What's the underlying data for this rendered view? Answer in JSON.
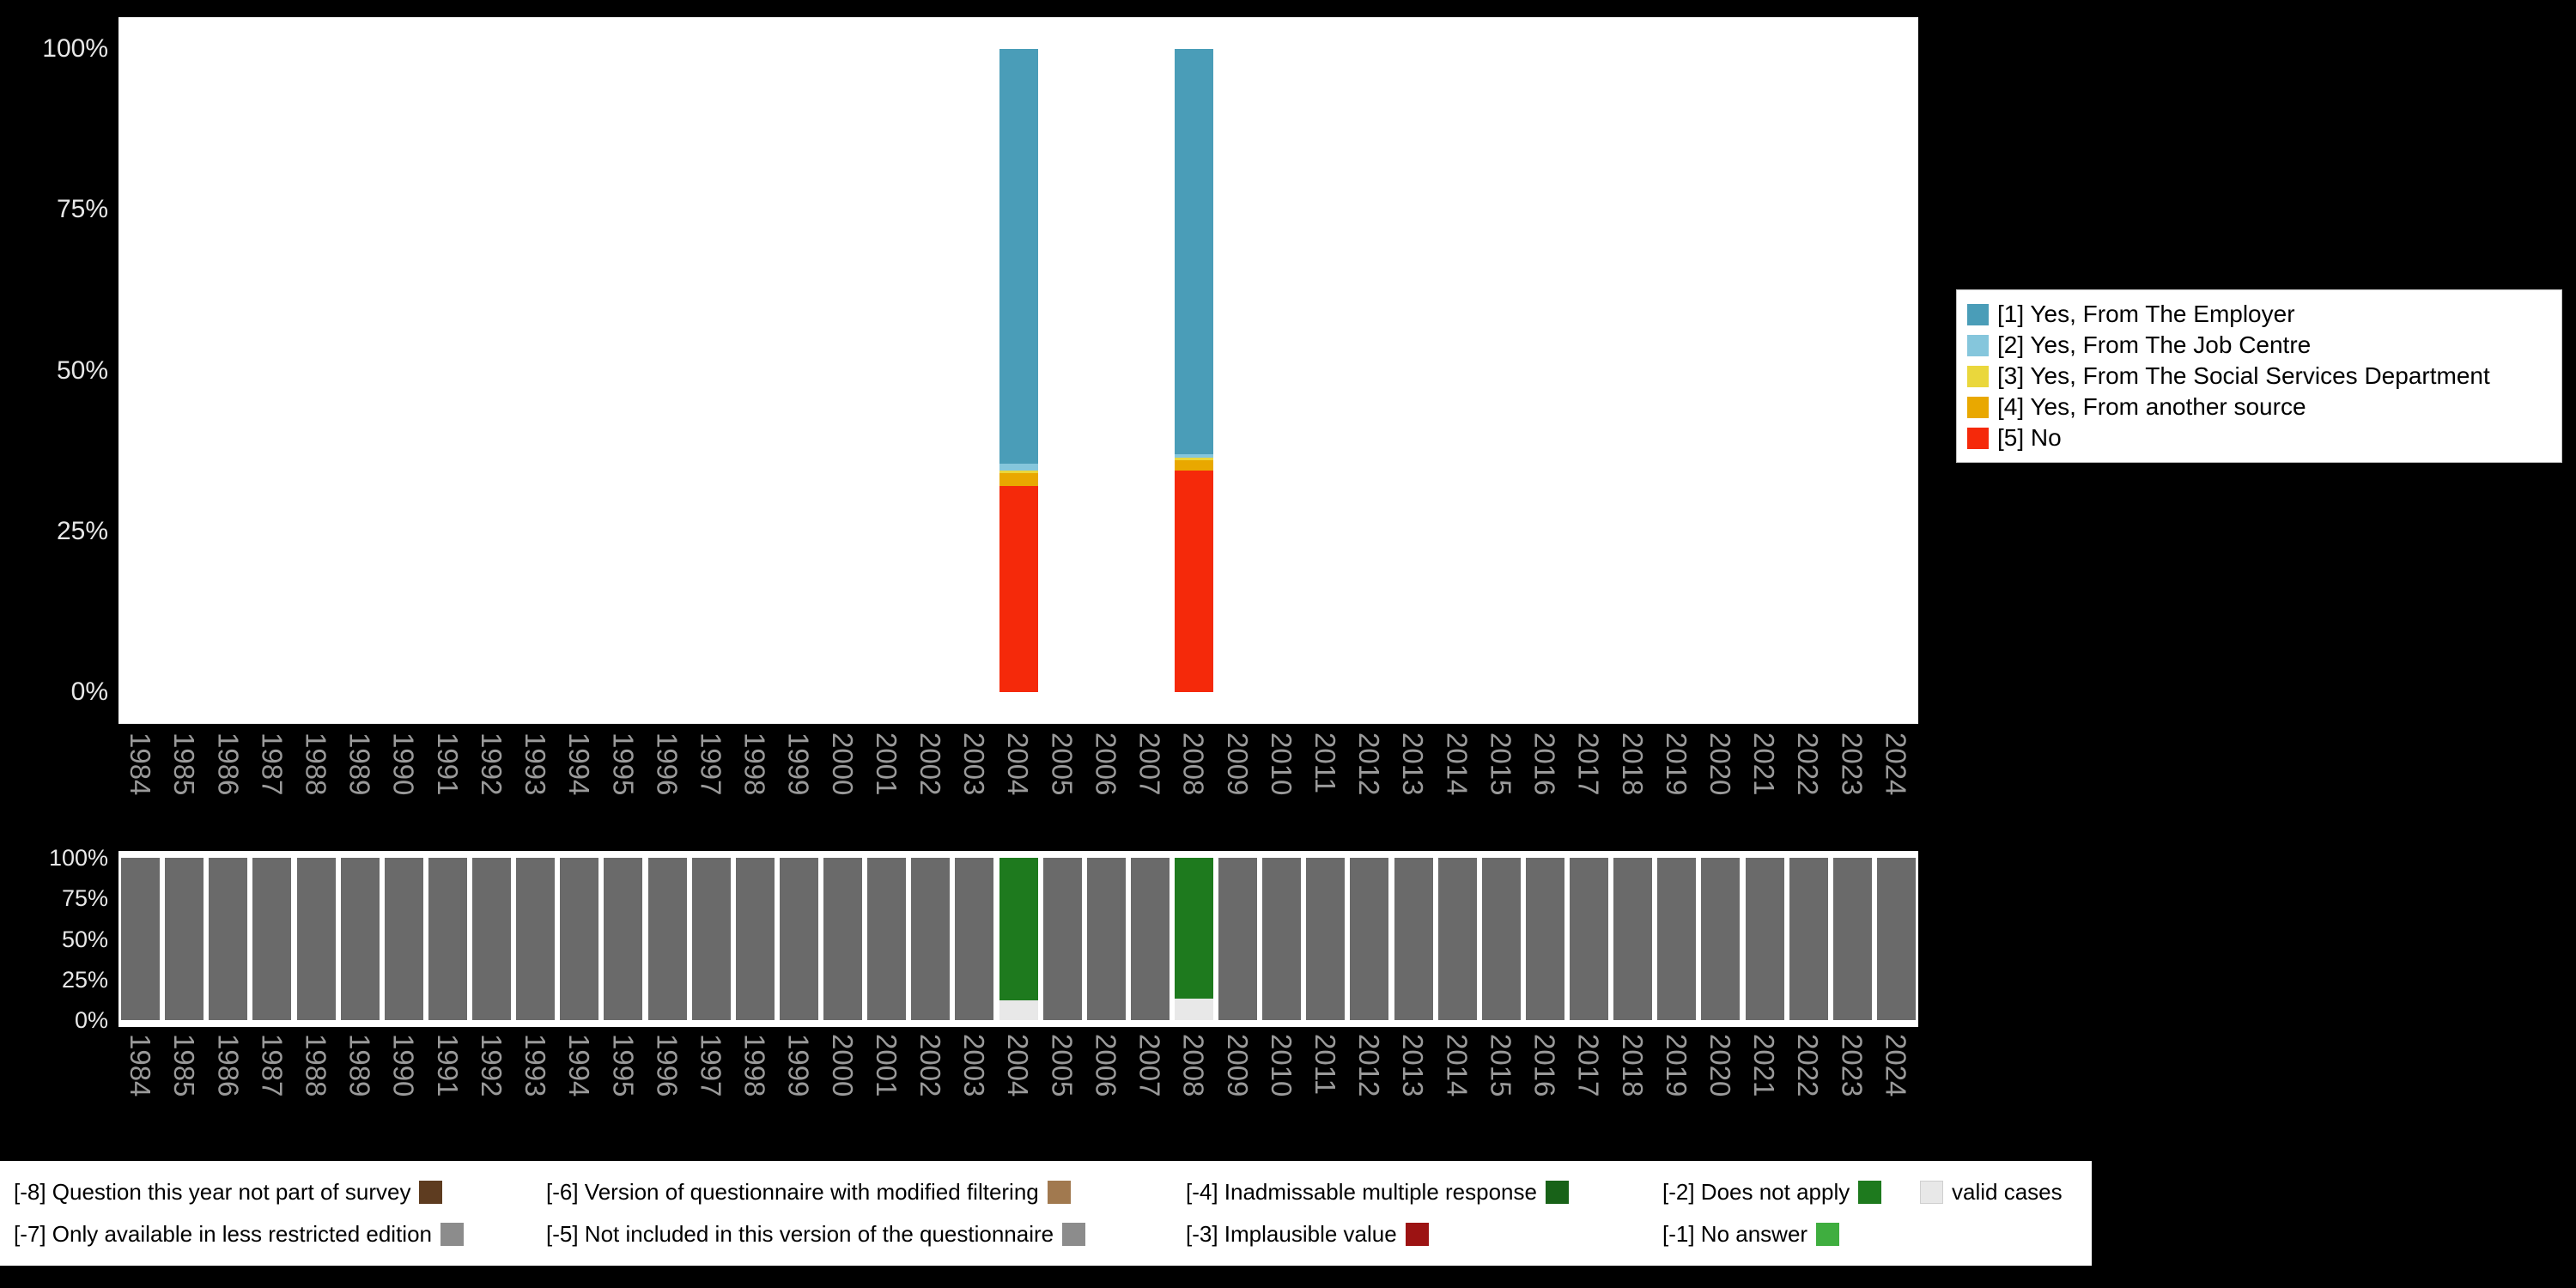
{
  "colors": {
    "background": "#000000",
    "plot_background": "#ffffff",
    "y_axis_text": "#e8e8e8",
    "x_axis_text": "#9a9a9a",
    "legend_background": "#ffffff",
    "legend_text": "#000000"
  },
  "legend": {
    "items": [
      {
        "label": "[1] Yes, From The Employer",
        "color": "#4a9db8"
      },
      {
        "label": "[2] Yes, From The Job Centre",
        "color": "#85c6dc"
      },
      {
        "label": "[3] Yes, From The Social Services Department",
        "color": "#ead73c"
      },
      {
        "label": "[4] Yes, From another source",
        "color": "#e9a800"
      },
      {
        "label": "[5] No",
        "color": "#f5290a"
      }
    ]
  },
  "missing_legend": {
    "items": [
      {
        "label": "[-8] Question this year not part of survey",
        "color": "#5e3c20",
        "swatch_position": "after",
        "swatch_border": false
      },
      {
        "label": "[-6] Version of questionnaire with modified filtering",
        "color": "#a1794f",
        "swatch_position": "after",
        "swatch_border": false
      },
      {
        "label": "[-4] Inadmissable multiple response",
        "color": "#186218",
        "swatch_position": "after",
        "swatch_border": false
      },
      {
        "label": "[-2] Does not apply",
        "color": "#1e7a1e",
        "swatch_position": "after",
        "swatch_border": false
      },
      {
        "label": "valid cases",
        "color": "#e8e8e8",
        "swatch_position": "before",
        "swatch_border": true
      },
      {
        "label": "[-7] Only available in less restricted edition",
        "color": "#8c8c8c",
        "swatch_position": "after",
        "swatch_border": false
      },
      {
        "label": "[-5] Not included in this version of the questionnaire",
        "color": "#8c8c8c",
        "swatch_position": "after",
        "swatch_border": false
      },
      {
        "label": "[-3] Implausible value",
        "color": "#9c1313",
        "swatch_position": "after",
        "swatch_border": false
      },
      {
        "label": "[-1] No answer",
        "color": "#3fae3f",
        "swatch_position": "after",
        "swatch_border": false
      }
    ]
  },
  "chart_data": [
    {
      "type": "bar",
      "stacked": true,
      "title": "",
      "xlabel": "",
      "ylabel": "",
      "ylim": [
        0,
        100
      ],
      "grid": false,
      "legend_position": "right",
      "y_tick_labels": [
        "100%",
        "75%",
        "50%",
        "25%",
        "0%"
      ],
      "x": [
        "1984",
        "1985",
        "1986",
        "1987",
        "1988",
        "1989",
        "1990",
        "1991",
        "1992",
        "1993",
        "1994",
        "1995",
        "1996",
        "1997",
        "1998",
        "1999",
        "2000",
        "2001",
        "2002",
        "2003",
        "2004",
        "2005",
        "2006",
        "2007",
        "2008",
        "2009",
        "2010",
        "2011",
        "2012",
        "2013",
        "2014",
        "2015",
        "2016",
        "2017",
        "2018",
        "2019",
        "2020",
        "2021",
        "2022",
        "2023",
        "2024"
      ],
      "stack_order": [
        "[5] No",
        "[4] Yes, From another source",
        "[3] Yes, From The Social Services Department",
        "[2] Yes, From The Job Centre",
        "[1] Yes, From The Employer"
      ],
      "series": [
        {
          "name": "[1] Yes, From The Employer",
          "color": "#4a9db8",
          "values_by_year": {
            "2004": 64.5,
            "2008": 63.0
          }
        },
        {
          "name": "[2] Yes, From The Job Centre",
          "color": "#85c6dc",
          "values_by_year": {
            "2004": 1.0,
            "2008": 0.5
          }
        },
        {
          "name": "[3] Yes, From The Social Services Department",
          "color": "#ead73c",
          "values_by_year": {
            "2004": 0.5,
            "2008": 0.5
          }
        },
        {
          "name": "[4] Yes, From another source",
          "color": "#e9a800",
          "values_by_year": {
            "2004": 2.0,
            "2008": 1.5
          }
        },
        {
          "name": "[5] No",
          "color": "#f5290a",
          "values_by_year": {
            "2004": 32.0,
            "2008": 34.5
          }
        }
      ],
      "note": "Percent stacked bars; only 2004 and 2008 have data, all other years empty"
    },
    {
      "type": "bar",
      "stacked": true,
      "title": "",
      "xlabel": "",
      "ylabel": "",
      "ylim": [
        0,
        100
      ],
      "grid": false,
      "y_tick_labels": [
        "100%",
        "75%",
        "50%",
        "25%",
        "0%"
      ],
      "x": [
        "1984",
        "1985",
        "1986",
        "1987",
        "1988",
        "1989",
        "1990",
        "1991",
        "1992",
        "1993",
        "1994",
        "1995",
        "1996",
        "1997",
        "1998",
        "1999",
        "2000",
        "2001",
        "2002",
        "2003",
        "2004",
        "2005",
        "2006",
        "2007",
        "2008",
        "2009",
        "2010",
        "2011",
        "2012",
        "2013",
        "2014",
        "2015",
        "2016",
        "2017",
        "2018",
        "2019",
        "2020",
        "2021",
        "2022",
        "2023",
        "2024"
      ],
      "stack_order": [
        "valid cases",
        "[-2] Does not apply",
        "[-5] Not included in this version of the questionnaire"
      ],
      "series": [
        {
          "name": "valid cases",
          "color": "#e8e8e8",
          "values_by_year": {
            "2004": 12,
            "2008": 13
          }
        },
        {
          "name": "[-2] Does not apply",
          "color": "#1e7a1e",
          "values_by_year": {
            "2004": 88,
            "2008": 87
          }
        },
        {
          "name": "[-5] Not included in this version of the questionnaire",
          "color": "#6a6a6a",
          "fill_remainder": true,
          "values_by_year": {}
        }
      ],
      "note": "Missing-values overview; gray 100% for all years except 2004 and 2008"
    }
  ]
}
